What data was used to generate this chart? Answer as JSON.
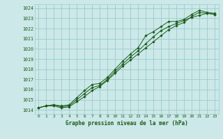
{
  "title": "Graphe pression niveau de la mer (hPa)",
  "bg_color": "#cce8e8",
  "grid_color": "#99cccc",
  "line_color": "#1a5c1a",
  "xlim": [
    -0.5,
    23.5
  ],
  "ylim": [
    1013.6,
    1024.4
  ],
  "yticks": [
    1014,
    1015,
    1016,
    1017,
    1018,
    1019,
    1020,
    1021,
    1022,
    1023,
    1024
  ],
  "xticks": [
    0,
    1,
    2,
    3,
    4,
    5,
    6,
    7,
    8,
    9,
    10,
    11,
    12,
    13,
    14,
    15,
    16,
    17,
    18,
    19,
    20,
    21,
    22,
    23
  ],
  "series": [
    [
      1014.2,
      1014.4,
      1014.4,
      1014.2,
      1014.3,
      1014.8,
      1015.3,
      1015.9,
      1016.3,
      1016.9,
      1017.6,
      1018.3,
      1018.9,
      1019.5,
      1020.1,
      1020.7,
      1021.3,
      1021.9,
      1022.3,
      1022.6,
      1023.2,
      1023.6,
      1023.5,
      1023.4
    ],
    [
      1014.2,
      1014.4,
      1014.5,
      1014.3,
      1014.4,
      1015.0,
      1015.6,
      1016.2,
      1016.4,
      1017.0,
      1017.8,
      1018.5,
      1019.2,
      1019.8,
      1020.5,
      1021.2,
      1021.8,
      1022.2,
      1022.5,
      1022.8,
      1023.1,
      1023.3,
      1023.5,
      1023.4
    ],
    [
      1014.2,
      1014.4,
      1014.5,
      1014.4,
      1014.5,
      1015.2,
      1015.9,
      1016.5,
      1016.6,
      1017.2,
      1018.0,
      1018.8,
      1019.5,
      1020.1,
      1021.3,
      1021.7,
      1022.2,
      1022.7,
      1022.7,
      1022.9,
      1023.4,
      1023.8,
      1023.6,
      1023.5
    ]
  ]
}
